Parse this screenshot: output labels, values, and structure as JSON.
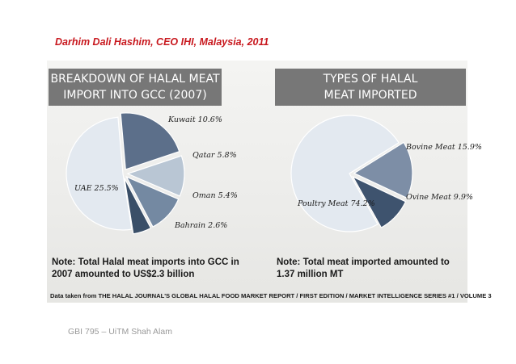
{
  "author_line": "Darhim Dali Hashim, CEO IHI, Malaysia, 2011",
  "left_header": {
    "line1": "BREAKDOWN OF HALAL MEAT",
    "line2": "IMPORT INTO GCC (2007)"
  },
  "right_header": {
    "line1": "TYPES OF HALAL",
    "line2": "MEAT IMPORTED"
  },
  "notes": {
    "left": "Note: Total Halal meat imports into GCC in 2007 amounted to US$2.3 billion",
    "right": "Note: Total meat imported amounted to 1.37 million MT"
  },
  "source": "Data taken from THE HALAL JOURNAL'S GLOBAL HALAL FOOD MARKET REPORT / FIRST EDITION / MARKET INTELLIGENCE  SERIES #1 / VOLUME 3",
  "footer": "GBI 795 – UiTM Shah Alam",
  "colors": {
    "header_bg": "#777777",
    "author_text": "#c8181e"
  },
  "chart_data": [
    {
      "type": "pie",
      "title": "BREAKDOWN OF HALAL MEAT IMPORT INTO GCC (2007)",
      "categories": [
        "Kuwait",
        "Qatar",
        "Oman",
        "Bahrain",
        "UAE"
      ],
      "values": [
        10.6,
        5.8,
        5.4,
        2.6,
        25.5
      ],
      "labels": [
        "Kuwait 10.6%",
        "Qatar 5.8%",
        "Oman 5.4%",
        "Bahrain 2.6%",
        "UAE  25.5%"
      ],
      "colors": [
        "#5c6f8a",
        "#b9c6d4",
        "#7489a2",
        "#3a4f68",
        "#e3e9f0"
      ]
    },
    {
      "type": "pie",
      "title": "TYPES OF HALAL MEAT IMPORTED",
      "categories": [
        "Bovine Meat",
        "Ovine Meat",
        "Poultry Meat"
      ],
      "values": [
        15.9,
        9.9,
        74.2
      ],
      "labels": [
        "Bovine Meat  15.9%",
        "Ovine Meat  9.9%",
        "Poultry Meat  74.2%"
      ],
      "colors": [
        "#7d8ea6",
        "#3e536e",
        "#e3e9f0"
      ]
    }
  ]
}
